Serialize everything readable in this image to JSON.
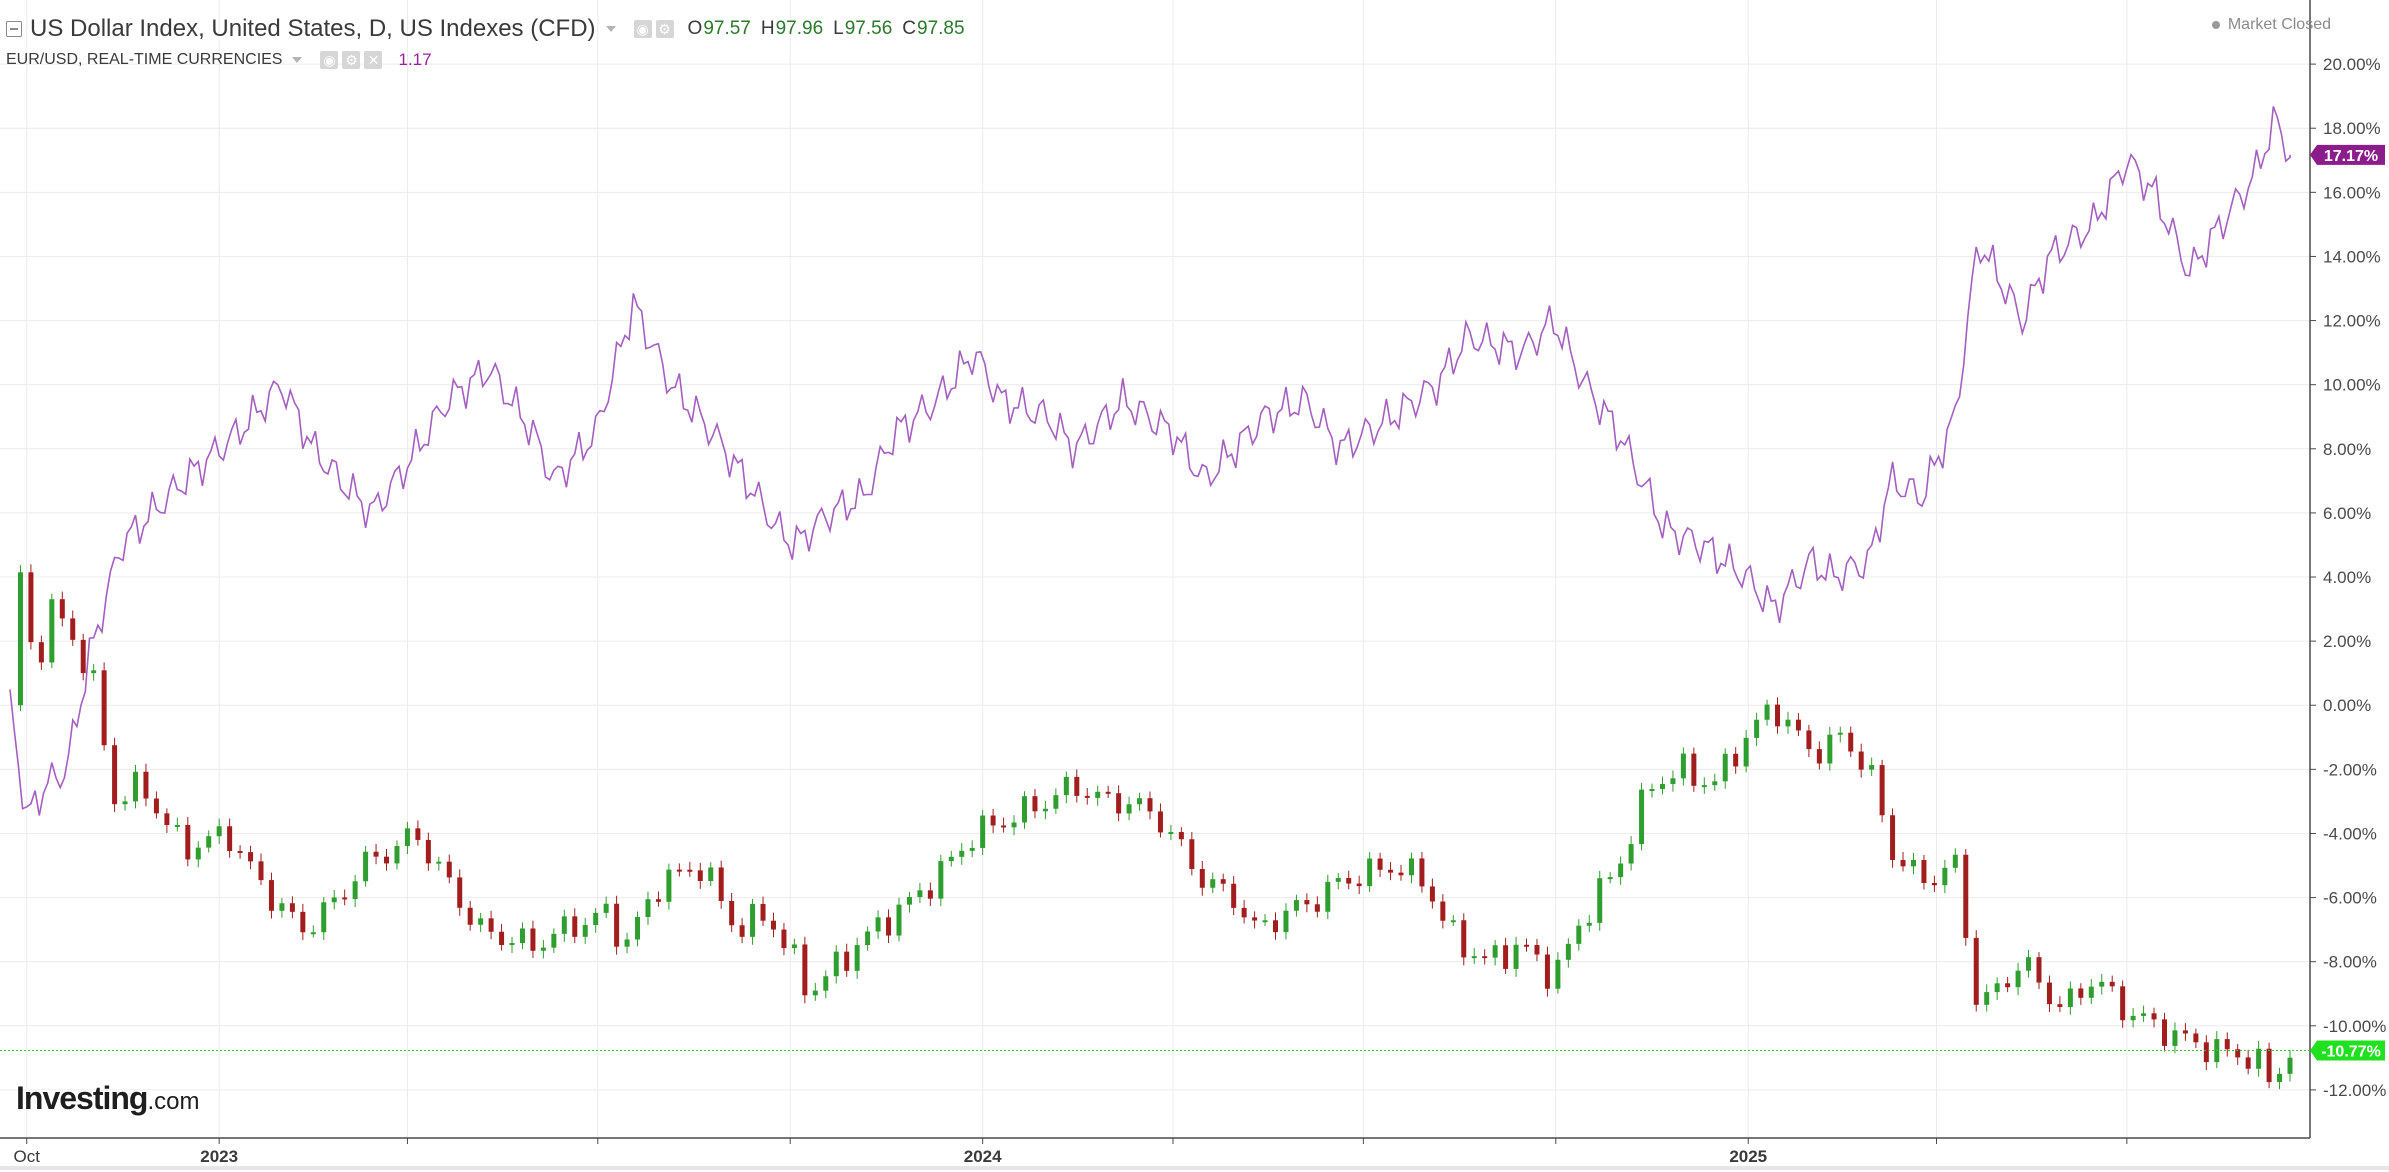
{
  "legend": {
    "main_title": "US Dollar Index, United States, D, US Indexes (CFD)",
    "ohlc": [
      {
        "label": "O",
        "value": "97.57"
      },
      {
        "label": "H",
        "value": "97.96"
      },
      {
        "label": "L",
        "value": "97.56"
      },
      {
        "label": "C",
        "value": "97.85"
      }
    ],
    "sub_title": "EUR/USD, REAL-TIME CURRENCIES",
    "sub_value": "1.17",
    "market_status": "Market Closed"
  },
  "logo": {
    "main": "Investing",
    "tld": ".com"
  },
  "colors": {
    "eurusd_line": "#a45fc0",
    "candle_up": "#2e9e2e",
    "candle_down": "#a21d1d",
    "eurusd_badge": "#8b1c8b",
    "dxy_badge": "#20e020",
    "grid": "#ececec"
  },
  "chart_data": {
    "type": "line",
    "yaxis": {
      "unit": "percent",
      "range": [
        -13.5,
        22
      ],
      "ticks": [
        "20.00%",
        "18.00%",
        "16.00%",
        "14.00%",
        "12.00%",
        "10.00%",
        "8.00%",
        "6.00%",
        "4.00%",
        "2.00%",
        "0.00%",
        "-2.00%",
        "-4.00%",
        "-6.00%",
        "-8.00%",
        "-10.00%",
        "-12.00%"
      ],
      "tick_values": [
        20,
        18,
        16,
        14,
        12,
        10,
        8,
        6,
        4,
        2,
        0,
        -2,
        -4,
        -6,
        -8,
        -10,
        -12
      ]
    },
    "xaxis": {
      "range": [
        "2022-09-23",
        "2025-09-17"
      ],
      "labels": [
        {
          "text": "Oct",
          "date": "2022-10-01"
        },
        {
          "text": "2023",
          "date": "2023-01-01"
        },
        {
          "text": "2024",
          "date": "2024-01-01"
        },
        {
          "text": "2025",
          "date": "2025-01-01"
        }
      ],
      "gridlines": [
        "2022-10-01",
        "2023-01-01",
        "2023-04-01",
        "2023-07-01",
        "2023-10-01",
        "2024-01-01",
        "2024-04-01",
        "2024-07-01",
        "2024-10-01",
        "2025-01-01",
        "2025-04-01",
        "2025-07-01"
      ]
    },
    "grid": true,
    "series": [
      {
        "name": "EUR/USD",
        "type": "line",
        "last_label": "17.17%",
        "points": [
          [
            "2022-09-23",
            0.0
          ],
          [
            "2022-10-01",
            -3.5
          ],
          [
            "2022-10-10",
            -2.5
          ],
          [
            "2022-10-20",
            -2.0
          ],
          [
            "2022-10-31",
            1.5
          ],
          [
            "2022-11-15",
            5.0
          ],
          [
            "2022-11-30",
            6.0
          ],
          [
            "2022-12-15",
            7.0
          ],
          [
            "2023-01-10",
            8.5
          ],
          [
            "2023-01-31",
            10.0
          ],
          [
            "2023-02-15",
            8.0
          ],
          [
            "2023-02-28",
            7.0
          ],
          [
            "2023-03-15",
            6.0
          ],
          [
            "2023-04-01",
            7.5
          ],
          [
            "2023-04-20",
            9.5
          ],
          [
            "2023-05-10",
            10.5
          ],
          [
            "2023-05-31",
            8.5
          ],
          [
            "2023-06-10",
            7.0
          ],
          [
            "2023-06-30",
            8.5
          ],
          [
            "2023-07-18",
            12.5
          ],
          [
            "2023-08-05",
            10.0
          ],
          [
            "2023-08-25",
            8.5
          ],
          [
            "2023-09-10",
            7.0
          ],
          [
            "2023-09-25",
            5.5
          ],
          [
            "2023-10-03",
            5.0
          ],
          [
            "2023-10-20",
            6.0
          ],
          [
            "2023-11-05",
            6.5
          ],
          [
            "2023-11-20",
            8.5
          ],
          [
            "2023-12-10",
            9.5
          ],
          [
            "2023-12-28",
            11.0
          ],
          [
            "2024-01-10",
            9.5
          ],
          [
            "2024-02-01",
            9.0
          ],
          [
            "2024-02-14",
            8.0
          ],
          [
            "2024-03-08",
            9.5
          ],
          [
            "2024-04-01",
            8.5
          ],
          [
            "2024-04-16",
            7.0
          ],
          [
            "2024-05-15",
            9.0
          ],
          [
            "2024-06-03",
            9.5
          ],
          [
            "2024-06-20",
            8.0
          ],
          [
            "2024-07-15",
            9.0
          ],
          [
            "2024-08-05",
            10.0
          ],
          [
            "2024-08-20",
            11.5
          ],
          [
            "2024-09-15",
            11.0
          ],
          [
            "2024-09-30",
            12.0
          ],
          [
            "2024-10-15",
            10.0
          ],
          [
            "2024-10-31",
            8.5
          ],
          [
            "2024-11-15",
            6.5
          ],
          [
            "2024-11-22",
            5.5
          ],
          [
            "2024-12-10",
            5.0
          ],
          [
            "2024-12-31",
            4.0
          ],
          [
            "2025-01-13",
            3.0
          ],
          [
            "2025-01-31",
            4.5
          ],
          [
            "2025-02-10",
            4.0
          ],
          [
            "2025-02-28",
            4.5
          ],
          [
            "2025-03-10",
            7.0
          ],
          [
            "2025-03-25",
            6.5
          ],
          [
            "2025-04-10",
            9.0
          ],
          [
            "2025-04-21",
            14.5
          ],
          [
            "2025-05-12",
            12.0
          ],
          [
            "2025-05-25",
            14.0
          ],
          [
            "2025-06-15",
            15.0
          ],
          [
            "2025-07-01",
            17.0
          ],
          [
            "2025-07-14",
            16.0
          ],
          [
            "2025-07-31",
            13.5
          ],
          [
            "2025-08-15",
            15.0
          ],
          [
            "2025-08-31",
            16.5
          ],
          [
            "2025-09-10",
            18.3
          ],
          [
            "2025-09-17",
            17.17
          ]
        ]
      },
      {
        "name": "US Dollar Index",
        "type": "candlestick",
        "last_label": "-10.77%",
        "points": [
          [
            "2022-09-23",
            0.0
          ],
          [
            "2022-09-28",
            4.0
          ],
          [
            "2022-10-05",
            1.0
          ],
          [
            "2022-10-12",
            3.0
          ],
          [
            "2022-10-20",
            2.5
          ],
          [
            "2022-10-31",
            1.0
          ],
          [
            "2022-11-05",
            0.0
          ],
          [
            "2022-11-10",
            -3.0
          ],
          [
            "2022-11-25",
            -2.5
          ],
          [
            "2022-12-15",
            -4.5
          ],
          [
            "2023-01-05",
            -4.0
          ],
          [
            "2023-01-20",
            -5.5
          ],
          [
            "2023-02-02",
            -6.5
          ],
          [
            "2023-02-10",
            -7.0
          ],
          [
            "2023-02-28",
            -6.0
          ],
          [
            "2023-03-10",
            -5.0
          ],
          [
            "2023-03-25",
            -4.5
          ],
          [
            "2023-04-05",
            -4.0
          ],
          [
            "2023-04-20",
            -5.5
          ],
          [
            "2023-05-05",
            -7.0
          ],
          [
            "2023-05-31",
            -7.5
          ],
          [
            "2023-06-15",
            -7.0
          ],
          [
            "2023-07-05",
            -6.5
          ],
          [
            "2023-07-14",
            -7.5
          ],
          [
            "2023-07-31",
            -5.5
          ],
          [
            "2023-08-20",
            -5.0
          ],
          [
            "2023-09-05",
            -7.0
          ],
          [
            "2023-09-20",
            -6.5
          ],
          [
            "2023-10-03",
            -8.0
          ],
          [
            "2023-10-10",
            -9.0
          ],
          [
            "2023-10-25",
            -8.0
          ],
          [
            "2023-11-10",
            -7.0
          ],
          [
            "2023-11-30",
            -6.0
          ],
          [
            "2023-12-15",
            -5.0
          ],
          [
            "2023-12-28",
            -4.0
          ],
          [
            "2024-01-15",
            -3.5
          ],
          [
            "2024-01-31",
            -3.0
          ],
          [
            "2024-02-14",
            -2.5
          ],
          [
            "2024-02-28",
            -3.0
          ],
          [
            "2024-03-10",
            -3.0
          ],
          [
            "2024-03-25",
            -3.5
          ],
          [
            "2024-04-05",
            -4.5
          ],
          [
            "2024-04-16",
            -5.5
          ],
          [
            "2024-04-30",
            -6.0
          ],
          [
            "2024-05-10",
            -7.0
          ],
          [
            "2024-05-25",
            -6.5
          ],
          [
            "2024-06-10",
            -6.0
          ],
          [
            "2024-06-20",
            -5.5
          ],
          [
            "2024-07-15",
            -5.0
          ],
          [
            "2024-07-31",
            -5.5
          ],
          [
            "2024-08-10",
            -7.0
          ],
          [
            "2024-08-27",
            -8.0
          ],
          [
            "2024-09-15",
            -7.5
          ],
          [
            "2024-09-30",
            -8.5
          ],
          [
            "2024-10-15",
            -6.5
          ],
          [
            "2024-10-31",
            -5.0
          ],
          [
            "2024-11-15",
            -2.5
          ],
          [
            "2024-11-30",
            -2.0
          ],
          [
            "2024-12-15",
            -2.5
          ],
          [
            "2024-12-31",
            -1.0
          ],
          [
            "2025-01-13",
            0.0
          ],
          [
            "2025-01-31",
            -1.5
          ],
          [
            "2025-02-15",
            -1.0
          ],
          [
            "2025-02-28",
            -2.0
          ],
          [
            "2025-03-10",
            -4.5
          ],
          [
            "2025-03-25",
            -5.5
          ],
          [
            "2025-04-10",
            -5.0
          ],
          [
            "2025-04-21",
            -9.5
          ],
          [
            "2025-05-12",
            -8.0
          ],
          [
            "2025-05-31",
            -9.5
          ],
          [
            "2025-06-15",
            -8.5
          ],
          [
            "2025-06-30",
            -9.5
          ],
          [
            "2025-07-14",
            -10.0
          ],
          [
            "2025-07-31",
            -10.5
          ],
          [
            "2025-08-15",
            -10.8
          ],
          [
            "2025-08-31",
            -11.0
          ],
          [
            "2025-09-08",
            -11.8
          ],
          [
            "2025-09-17",
            -10.77
          ]
        ]
      }
    ]
  }
}
